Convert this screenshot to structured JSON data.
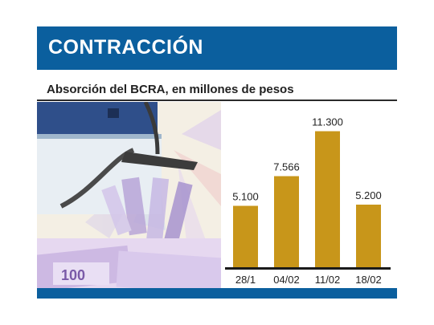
{
  "header": {
    "title": "CONTRACCIÓN"
  },
  "subtitle": "Absorción del BCRA, en millones de pesos",
  "photo": {
    "description_icon": "vacuum-money-photo-icon"
  },
  "colors": {
    "band": "#0b5f9e",
    "bar": "#c8961a",
    "axis": "#1a1a1a"
  },
  "chart_data": {
    "type": "bar",
    "title": "Absorción del BCRA, en millones de pesos",
    "categories": [
      "28/1",
      "04/02",
      "11/02",
      "18/02"
    ],
    "values": [
      5100,
      7566,
      11300,
      5200
    ],
    "value_labels": [
      "5.100",
      "7.566",
      "11.300",
      "5.200"
    ],
    "xlabel": "",
    "ylabel": "",
    "ylim": [
      0,
      12000
    ],
    "grid": false,
    "legend": "none"
  }
}
